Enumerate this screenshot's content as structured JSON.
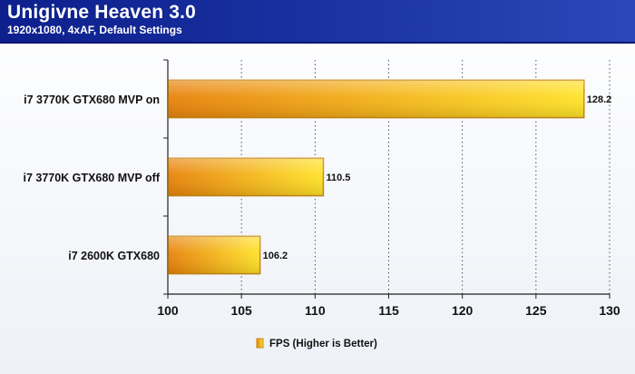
{
  "header": {
    "title": "Unigivne Heaven 3.0",
    "subtitle": "1920x1080, 4xAF, Default Settings"
  },
  "chart_data": {
    "type": "bar",
    "orientation": "horizontal",
    "categories": [
      "i7 3770K GTX680 MVP on",
      "i7 3770K GTX680 MVP off",
      "i7 2600K GTX680"
    ],
    "series": [
      {
        "name": "FPS (Higher is Better)",
        "values": [
          128.2,
          110.5,
          106.2
        ]
      }
    ],
    "data_labels": [
      "128.2",
      "110.5",
      "106.2"
    ],
    "xlim": [
      100,
      130
    ],
    "xticks": [
      100,
      105,
      110,
      115,
      120,
      125,
      130
    ],
    "grid": "vertical-dotted",
    "legend_position": "bottom-center",
    "bar_color_start": "#e8820a",
    "bar_color_end": "#ffe227",
    "bar_border_color": "#c98a1a"
  }
}
